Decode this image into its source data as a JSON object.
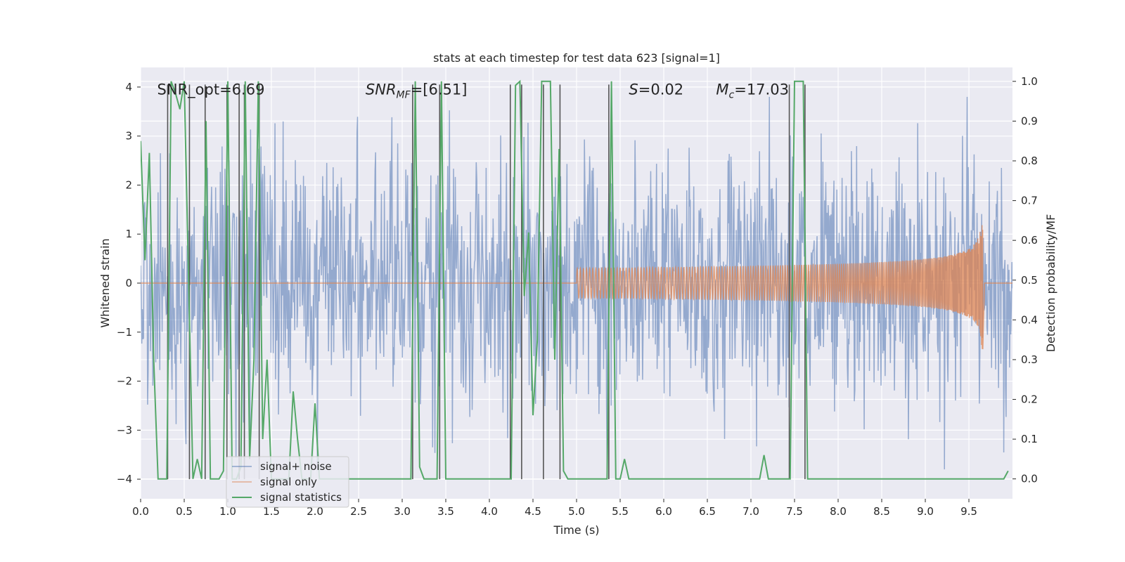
{
  "chart_data": {
    "type": "line",
    "title": "stats at each timestep for test data 623 [signal=1]",
    "xlabel": "Time (s)",
    "ylabel": "Whitened strain",
    "ylabel_right": "Detection probability/MF",
    "xlim": [
      0.0,
      10.0
    ],
    "ylim": [
      -4.4,
      4.4
    ],
    "ylim_right": [
      -0.05,
      1.035
    ],
    "x_ticks": [
      "0.0",
      "0.5",
      "1.0",
      "1.5",
      "2.0",
      "2.5",
      "3.0",
      "3.5",
      "4.0",
      "4.5",
      "5.0",
      "5.5",
      "6.0",
      "6.5",
      "7.0",
      "7.5",
      "8.0",
      "8.5",
      "9.0",
      "9.5"
    ],
    "y_ticks": [
      "4",
      "3",
      "2",
      "1",
      "0",
      "−1",
      "−2",
      "−3",
      "−4"
    ],
    "y_right_ticks": [
      "1.0",
      "0.9",
      "0.8",
      "0.7",
      "0.6",
      "0.5",
      "0.4",
      "0.3",
      "0.2",
      "0.1",
      "0.0"
    ],
    "grid": true,
    "legend_position": "lower-left",
    "annotations": [
      {
        "text": "SNR_opt=6.69",
        "x": 0.19
      },
      {
        "text": "SNR_MF=[6.51]",
        "x": 2.58
      },
      {
        "text": "S=0.02",
        "x": 5.6
      },
      {
        "text": "M_c=17.03",
        "x": 6.6
      }
    ],
    "series": [
      {
        "name": "signal+ noise",
        "color": "#4c72b0",
        "kind": "noise",
        "typical_amplitude": 1.6,
        "peak_amplitude": 3.8,
        "samples": 1500
      },
      {
        "name": "signal only",
        "color": "#dd8452",
        "kind": "chirp",
        "x_start": 5.0,
        "x_end": 9.66,
        "peak_amplitude": 1.35
      },
      {
        "name": "signal statistics",
        "color": "#55a868",
        "axis": "right",
        "x": [
          0.0,
          0.05,
          0.1,
          0.15,
          0.2,
          0.25,
          0.3,
          0.35,
          0.4,
          0.45,
          0.5,
          0.55,
          0.6,
          0.65,
          0.7,
          0.75,
          0.8,
          0.85,
          0.9,
          0.95,
          1.0,
          1.05,
          1.1,
          1.15,
          1.2,
          1.25,
          1.3,
          1.35,
          1.4,
          1.45,
          1.5,
          1.55,
          1.6,
          1.65,
          1.7,
          1.75,
          1.8,
          1.85,
          1.9,
          1.95,
          2.0,
          2.05,
          2.1,
          2.15,
          3.1,
          3.15,
          3.2,
          3.25,
          3.3,
          3.35,
          3.4,
          3.45,
          3.5,
          3.55,
          3.6,
          4.25,
          4.3,
          4.35,
          4.4,
          4.45,
          4.5,
          4.55,
          4.6,
          4.65,
          4.7,
          4.75,
          4.8,
          4.85,
          4.9,
          4.95,
          5.0,
          5.05,
          5.1,
          5.35,
          5.4,
          5.45,
          5.5,
          5.55,
          5.6,
          5.65,
          7.1,
          7.15,
          7.2,
          7.25,
          7.3,
          7.45,
          7.5,
          7.55,
          7.6,
          7.65,
          7.7,
          7.75,
          7.8,
          7.85,
          9.9,
          9.95
        ],
        "y": [
          0.85,
          0.55,
          0.82,
          0.3,
          0.0,
          0.0,
          0.0,
          1.0,
          0.97,
          0.93,
          1.0,
          0.5,
          0.0,
          0.05,
          0.0,
          0.9,
          0.0,
          0.0,
          0.0,
          0.02,
          1.0,
          0.0,
          0.0,
          0.03,
          1.0,
          0.05,
          0.3,
          1.0,
          0.1,
          0.3,
          0.0,
          0.0,
          0.0,
          0.0,
          0.0,
          0.22,
          0.1,
          0.0,
          0.0,
          0.0,
          0.19,
          0.0,
          0.0,
          0.0,
          0.0,
          1.0,
          0.03,
          0.0,
          0.0,
          0.0,
          0.0,
          1.0,
          0.0,
          0.0,
          0.0,
          0.0,
          0.99,
          1.0,
          0.46,
          0.62,
          0.16,
          0.35,
          1.0,
          1.0,
          1.0,
          0.3,
          0.83,
          0.02,
          0.0,
          0.0,
          0.0,
          0.0,
          0.0,
          0.0,
          1.0,
          0.0,
          0.0,
          0.05,
          0.0,
          0.0,
          0.0,
          0.06,
          0.0,
          0.0,
          0.0,
          0.0,
          1.0,
          1.0,
          1.0,
          0.0,
          0.0,
          0.0,
          0.0,
          0.0,
          0.0,
          0.02
        ]
      }
    ],
    "vertical_markers_x": [
      0.31,
      0.56,
      0.74,
      0.99,
      1.13,
      1.19,
      1.36,
      3.12,
      3.43,
      4.24,
      4.37,
      4.62,
      4.81,
      5.37,
      7.44,
      7.62
    ]
  },
  "colors": {
    "plot_background": "#eaeaf2",
    "grid": "#ffffff",
    "marker_lines": "#555555"
  }
}
